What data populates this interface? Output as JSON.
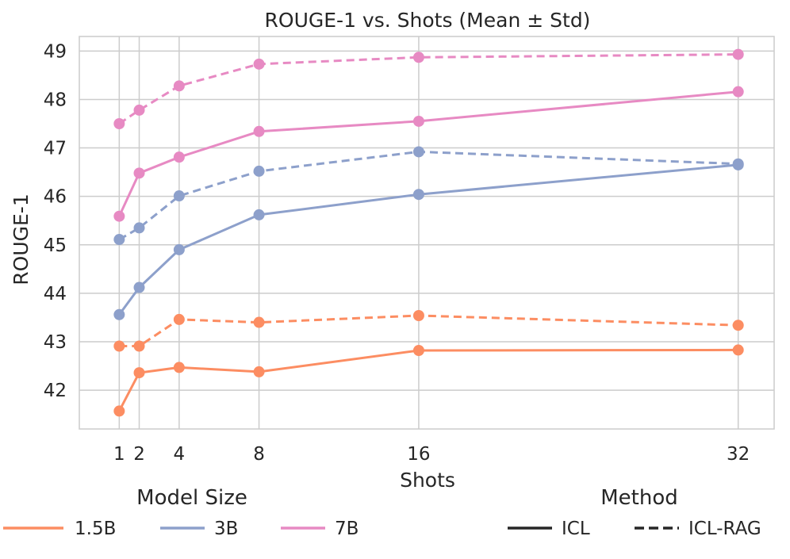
{
  "chart_data": {
    "type": "line",
    "title": "ROUGE-1 vs. Shots (Mean ± Std)",
    "xlabel": "Shots",
    "ylabel": "ROUGE-1",
    "x": [
      1,
      2,
      4,
      8,
      16,
      32
    ],
    "x_tick_labels": [
      "1",
      "2",
      "4",
      "8",
      "16",
      "32"
    ],
    "xlim": [
      -1,
      33.8
    ],
    "ylim": [
      41.2,
      49.3
    ],
    "y_ticks": [
      42,
      43,
      44,
      45,
      46,
      47,
      48,
      49
    ],
    "grid": true,
    "series": [
      {
        "name": "1.5B ICL",
        "model": "1.5B",
        "method": "ICL",
        "color": "#fc8d62",
        "dashed": false,
        "values": [
          41.57,
          42.36,
          42.47,
          42.38,
          42.82,
          42.83
        ]
      },
      {
        "name": "1.5B ICL-RAG",
        "model": "1.5B",
        "method": "ICL-RAG",
        "color": "#fc8d62",
        "dashed": true,
        "values": [
          42.91,
          42.91,
          43.46,
          43.4,
          43.54,
          43.34
        ]
      },
      {
        "name": "3B ICL",
        "model": "3B",
        "method": "ICL",
        "color": "#8da0cb",
        "dashed": false,
        "values": [
          43.56,
          44.12,
          44.9,
          45.62,
          46.04,
          46.65
        ]
      },
      {
        "name": "3B ICL-RAG",
        "model": "3B",
        "method": "ICL-RAG",
        "color": "#8da0cb",
        "dashed": true,
        "values": [
          45.11,
          45.35,
          46.01,
          46.52,
          46.92,
          46.67
        ]
      },
      {
        "name": "7B ICL",
        "model": "7B",
        "method": "ICL",
        "color": "#e78ac3",
        "dashed": false,
        "values": [
          45.59,
          46.48,
          46.81,
          47.34,
          47.55,
          48.16
        ]
      },
      {
        "name": "7B ICL-RAG",
        "model": "7B",
        "method": "ICL-RAG",
        "color": "#e78ac3",
        "dashed": true,
        "values": [
          47.5,
          47.78,
          48.28,
          48.73,
          48.87,
          48.93
        ]
      }
    ],
    "legend": {
      "placement": "bottom",
      "model_title": "Model Size",
      "model_entries": [
        {
          "label": "1.5B",
          "color": "#fc8d62"
        },
        {
          "label": "3B",
          "color": "#8da0cb"
        },
        {
          "label": "7B",
          "color": "#e78ac3"
        }
      ],
      "method_title": "Method",
      "method_entries": [
        {
          "label": "ICL",
          "dashed": false
        },
        {
          "label": "ICL-RAG",
          "dashed": true
        }
      ]
    }
  }
}
